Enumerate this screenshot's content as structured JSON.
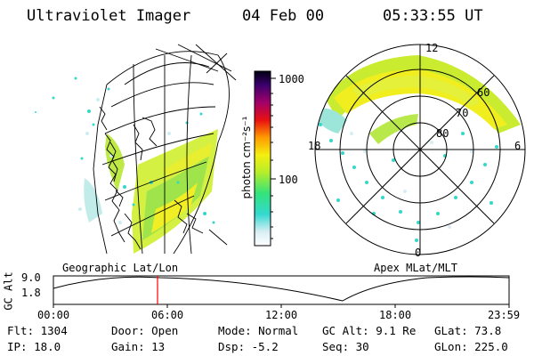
{
  "header": {
    "instrument": "Ultraviolet Imager",
    "date": "04 Feb 00",
    "time": "05:33:55 UT"
  },
  "colorbar": {
    "unit_label": "photon cm⁻²s⁻¹",
    "tick_1000": "1000",
    "tick_100": "100"
  },
  "left_panel": {
    "label": "Geographic Lat/Lon"
  },
  "right_panel": {
    "label": "Apex  MLat/MLT",
    "mlt_top": "12",
    "mlt_left": "18",
    "mlt_right": "6",
    "mlt_bottom": "0",
    "lat_60": "60",
    "lat_70": "70",
    "lat_80": "80"
  },
  "altitude_plot": {
    "ylabel": "GC Alt",
    "ytick_top": "9.0",
    "ytick_bottom": "1.8",
    "xticks": [
      "00:00",
      "06:00",
      "12:00",
      "18:00",
      "23:59"
    ]
  },
  "status": {
    "flt": "Flt: 1304",
    "ip": "IP: 18.0",
    "door": "Door: Open",
    "gain": "Gain: 13",
    "mode": "Mode: Normal",
    "dsp": "Dsp:   -5.2",
    "gc_alt": "GC Alt: 9.1 Re",
    "seq": "Seq: 30",
    "glat": "GLat:  73.8",
    "glon": "GLon: 225.0"
  },
  "colors": {
    "orbit_marker": "#ff0000"
  }
}
